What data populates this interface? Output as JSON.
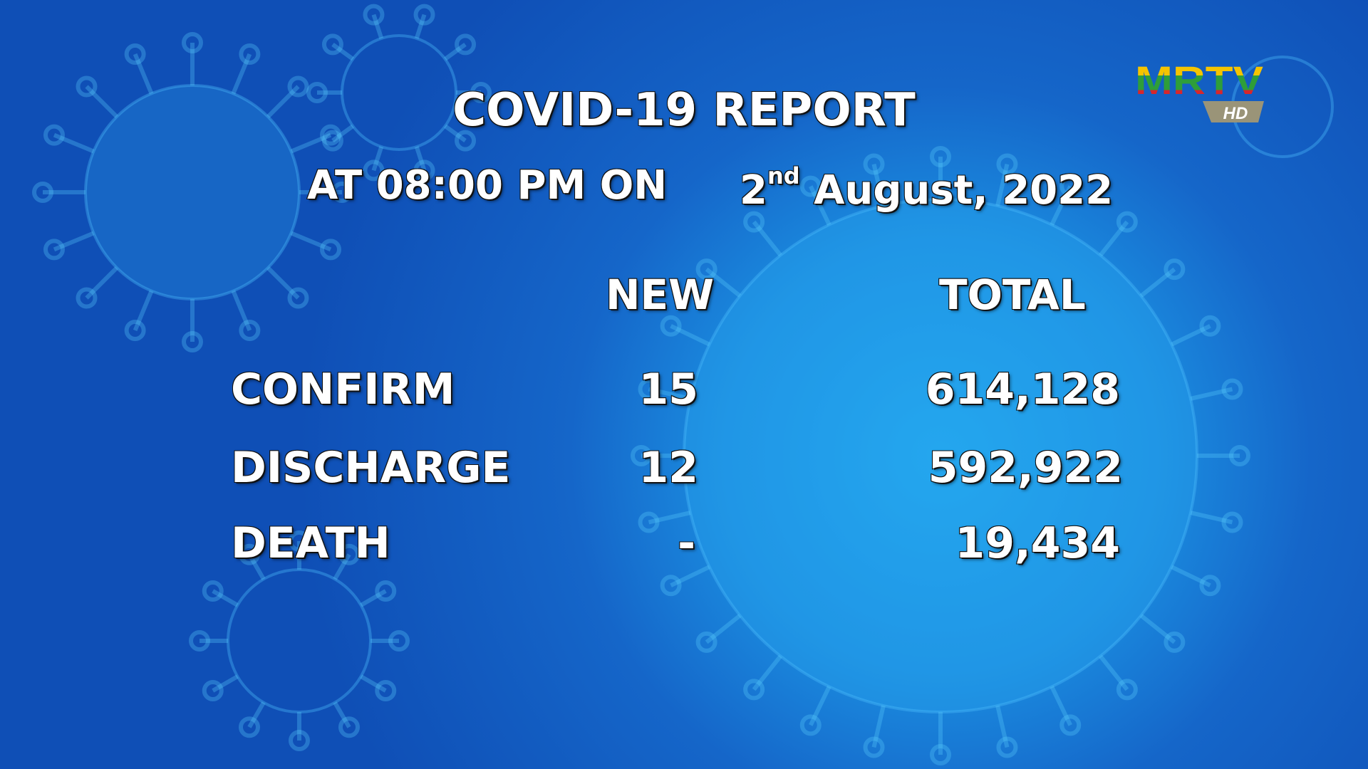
{
  "report": {
    "title": "COVID-19 REPORT",
    "time_prefix": "AT 08:00 PM ON",
    "day": "2",
    "day_suffix": "nd",
    "date_rest": "August, 2022",
    "col_new": "NEW",
    "col_total": "TOTAL",
    "rows": [
      {
        "label": "CONFIRM",
        "new": "15",
        "total": "614,128"
      },
      {
        "label": "DISCHARGE",
        "new": "12",
        "total": "592,922"
      },
      {
        "label": "DEATH",
        "new": "-",
        "total": "19,434"
      }
    ]
  },
  "logo": {
    "text": "MRTV",
    "badge": "HD"
  },
  "colors": {
    "background": "#1566c9",
    "text": "#ffffff",
    "logo_yellow": "#f5c400",
    "logo_green": "#2e9e3a",
    "logo_red": "#d8262c"
  }
}
